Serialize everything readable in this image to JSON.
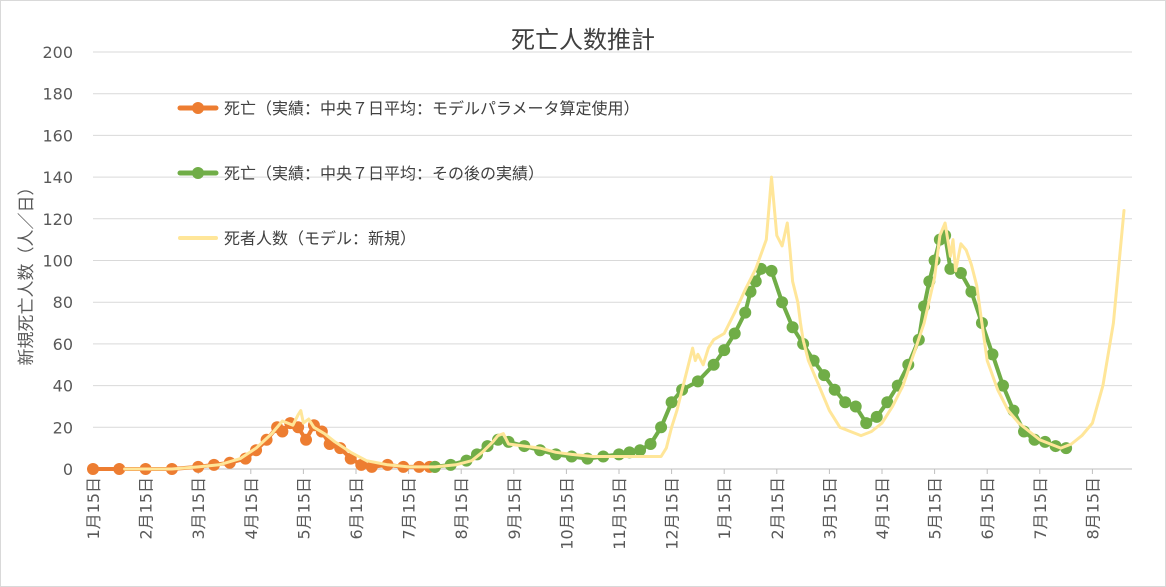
{
  "chart_data": {
    "type": "line",
    "title": "死亡人数推計",
    "ylabel": "新規死亡人数（人／日）",
    "xlabel": "",
    "ylim": [
      0,
      200
    ],
    "yticks": [
      0,
      20,
      40,
      60,
      80,
      100,
      120,
      140,
      160,
      180,
      200
    ],
    "grid": true,
    "legend_position": "upper-left",
    "xticks": [
      "1月15日",
      "2月15日",
      "3月15日",
      "4月15日",
      "5月15日",
      "6月15日",
      "7月15日",
      "8月15日",
      "9月15日",
      "10月15日",
      "11月15日",
      "12月15日",
      "1月15日",
      "2月15日",
      "3月15日",
      "4月15日",
      "5月15日",
      "6月15日",
      "7月15日",
      "8月15日"
    ],
    "x_unit_note": "x = months since the first tick (1月15日)",
    "series": [
      {
        "name": "死亡（実績：中央７日平均：モデルパラメータ算定使用）",
        "color": "#ED7D31",
        "marker": true,
        "x": [
          0,
          0.5,
          1,
          1.5,
          2,
          2.3,
          2.6,
          2.9,
          3.1,
          3.3,
          3.5,
          3.6,
          3.75,
          3.9,
          4.05,
          4.2,
          4.35,
          4.5,
          4.7,
          4.9,
          5.1,
          5.3,
          5.6,
          5.9,
          6.2,
          6.4,
          6.5
        ],
        "y": [
          0,
          0,
          0,
          0,
          1,
          2,
          3,
          5,
          9,
          14,
          20,
          18,
          22,
          20,
          14,
          21,
          18,
          12,
          10,
          5,
          2,
          1,
          2,
          1,
          1,
          1,
          1
        ]
      },
      {
        "name": "死亡（実績：中央７日平均：その後の実績）",
        "color": "#70AD47",
        "marker": true,
        "x": [
          6.5,
          6.8,
          7.1,
          7.3,
          7.5,
          7.7,
          7.9,
          8.2,
          8.5,
          8.8,
          9.1,
          9.4,
          9.7,
          10.0,
          10.2,
          10.4,
          10.6,
          10.8,
          11.0,
          11.2,
          11.5,
          11.8,
          12.0,
          12.2,
          12.4,
          12.5,
          12.6,
          12.7,
          12.9,
          13.1,
          13.3,
          13.5,
          13.7,
          13.9,
          14.1,
          14.3,
          14.5,
          14.7,
          14.9,
          15.1,
          15.3,
          15.5,
          15.7,
          15.8,
          15.9,
          16.0,
          16.1,
          16.2,
          16.3,
          16.5,
          16.7,
          16.9,
          17.1,
          17.3,
          17.5,
          17.7,
          17.9,
          18.1,
          18.3,
          18.5
        ],
        "y": [
          1,
          2,
          4,
          7,
          11,
          14,
          13,
          11,
          9,
          7,
          6,
          5,
          6,
          7,
          8,
          9,
          12,
          20,
          32,
          38,
          42,
          50,
          57,
          65,
          75,
          85,
          90,
          96,
          95,
          80,
          68,
          60,
          52,
          45,
          38,
          32,
          30,
          22,
          25,
          32,
          40,
          50,
          62,
          78,
          90,
          100,
          110,
          112,
          96,
          94,
          85,
          70,
          55,
          40,
          28,
          18,
          14,
          13,
          11,
          10
        ]
      },
      {
        "name": "死者人数（モデル：新規）",
        "color": "#FFE699",
        "marker": false,
        "x": [
          0.6,
          1,
          1.5,
          2,
          2.4,
          2.8,
          3.1,
          3.4,
          3.6,
          3.8,
          3.9,
          3.95,
          4.0,
          4.1,
          4.2,
          4.4,
          4.6,
          4.9,
          5.2,
          5.6,
          6.0,
          6.5,
          6.9,
          7.2,
          7.4,
          7.6,
          7.7,
          7.8,
          7.9,
          8.2,
          8.5,
          8.8,
          9.1,
          9.5,
          10.0,
          10.5,
          10.8,
          10.9,
          11.0,
          11.1,
          11.2,
          11.3,
          11.4,
          11.45,
          11.5,
          11.6,
          11.7,
          11.8,
          12.0,
          12.2,
          12.4,
          12.6,
          12.8,
          12.9,
          13.0,
          13.1,
          13.2,
          13.25,
          13.3,
          13.4,
          13.45,
          13.5,
          13.6,
          13.8,
          14.0,
          14.2,
          14.4,
          14.6,
          14.8,
          15.0,
          15.2,
          15.4,
          15.6,
          15.8,
          16.0,
          16.1,
          16.2,
          16.3,
          16.35,
          16.4,
          16.5,
          16.6,
          16.7,
          16.8,
          16.9,
          17.0,
          17.2,
          17.4,
          17.6,
          17.8,
          18.0,
          18.2,
          18.4,
          18.6,
          18.8,
          19.0,
          19.2,
          19.4,
          19.6
        ],
        "y": [
          0,
          0,
          0,
          1,
          2,
          5,
          10,
          17,
          23,
          21,
          26,
          28,
          22,
          24,
          20,
          17,
          13,
          8,
          4,
          2,
          1,
          1,
          2,
          4,
          8,
          13,
          16,
          17,
          12,
          11,
          10,
          8,
          7,
          6,
          6,
          6,
          6,
          10,
          20,
          28,
          38,
          48,
          58,
          52,
          55,
          50,
          58,
          62,
          65,
          75,
          86,
          96,
          110,
          140,
          112,
          107,
          118,
          105,
          90,
          80,
          70,
          62,
          52,
          40,
          28,
          20,
          18,
          16,
          18,
          22,
          30,
          40,
          55,
          70,
          92,
          112,
          118,
          102,
          110,
          95,
          108,
          105,
          98,
          88,
          70,
          52,
          38,
          28,
          22,
          18,
          14,
          12,
          10,
          12,
          16,
          22,
          40,
          70,
          124
        ]
      }
    ]
  }
}
